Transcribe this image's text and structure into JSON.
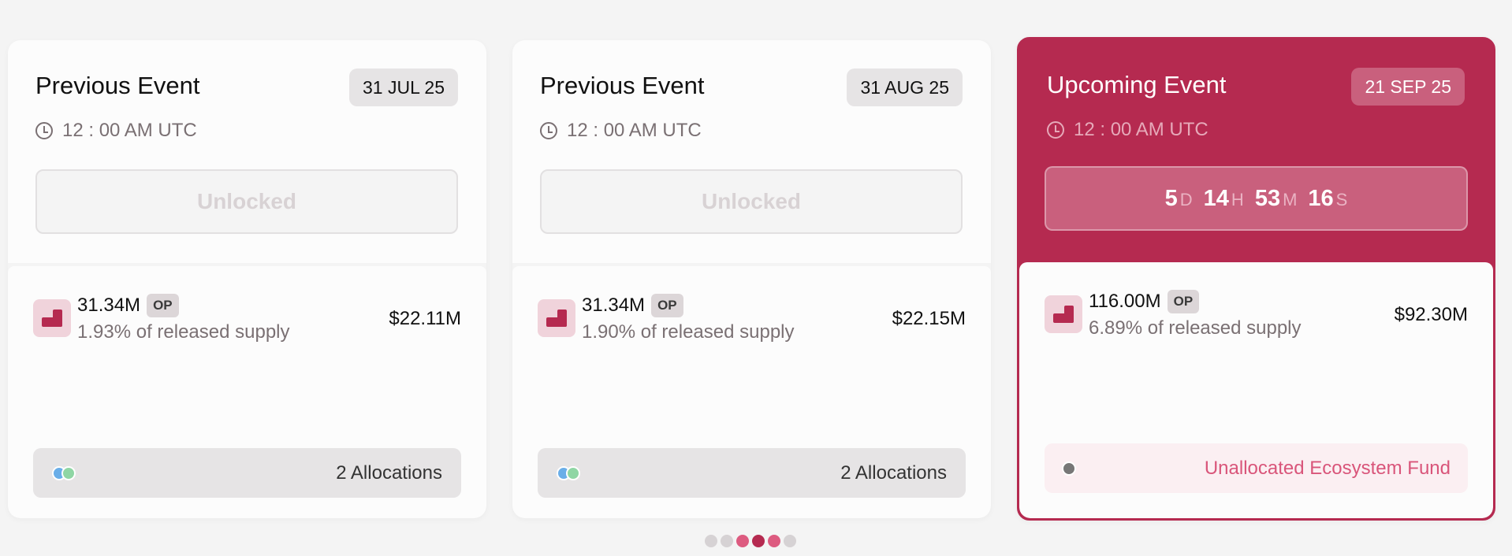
{
  "cards": [
    {
      "title": "Previous Event",
      "date": "31 JUL 25",
      "time": "12 : 00 AM UTC",
      "status": "Unlocked",
      "amount": "31.34M",
      "symbol": "OP",
      "supply": "1.93% of released supply",
      "value": "$22.11M",
      "allocations": "2 Allocations"
    },
    {
      "title": "Previous Event",
      "date": "31 AUG 25",
      "time": "12 : 00 AM UTC",
      "status": "Unlocked",
      "amount": "31.34M",
      "symbol": "OP",
      "supply": "1.90% of released supply",
      "value": "$22.15M",
      "allocations": "2 Allocations"
    },
    {
      "title": "Upcoming Event",
      "date": "21 SEP 25",
      "time": "12 : 00 AM UTC",
      "countdown": {
        "days": "5",
        "d": "D",
        "hours": "14",
        "h": "H",
        "minutes": "53",
        "m": "M",
        "seconds": "16",
        "s": "S"
      },
      "amount": "116.00M",
      "symbol": "OP",
      "supply": "6.89% of released supply",
      "value": "$92.30M",
      "allocations": "Unallocated Ecosystem Fund"
    }
  ],
  "colors": {
    "accent": "#b52a50",
    "allocation_dots": [
      "#6aaee8",
      "#8fd6a4"
    ],
    "unallocated_dot": "#777777"
  },
  "pagination": {
    "colors": [
      "#d6d2d4",
      "#d6d2d4",
      "#dd5b80",
      "#b52a50",
      "#dd5b80",
      "#d6d2d4"
    ],
    "active_index": 3
  }
}
